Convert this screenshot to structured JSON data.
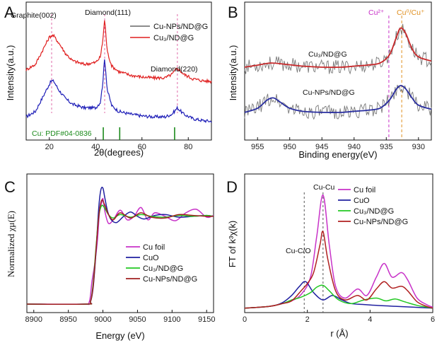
{
  "chart_data": [
    {
      "id": "A",
      "type": "line",
      "panel_label": "A",
      "title": "",
      "xlabel": "2θ(degrees)",
      "ylabel": "Intensity(a.u.)",
      "xlim": [
        10,
        90
      ],
      "xticks": [
        20,
        40,
        60,
        80
      ],
      "tick_labels": [
        "20",
        "40",
        "60",
        "80"
      ],
      "annotations": [
        "Graphite(002)",
        "Diamond(111)",
        "Diamond(220)"
      ],
      "reference_label": "Cu: PDF#04-0836",
      "reference_lines": [
        43.3,
        50.4,
        74.1
      ],
      "dashed_lines": [
        21.0,
        43.9,
        75.3
      ],
      "series": [
        {
          "name": "Cu-NPs/ND@G",
          "color": "#1f1fb8",
          "x": [
            10,
            14,
            18,
            20,
            21,
            22,
            24,
            27,
            30,
            35,
            40,
            42,
            43,
            43.9,
            45,
            47,
            50,
            55,
            60,
            65,
            70,
            73,
            75.3,
            78,
            82,
            86,
            90
          ],
          "y": [
            0.1,
            0.16,
            0.36,
            0.46,
            0.5,
            0.49,
            0.4,
            0.3,
            0.24,
            0.2,
            0.2,
            0.26,
            0.45,
            0.75,
            0.4,
            0.22,
            0.16,
            0.13,
            0.11,
            0.1,
            0.1,
            0.13,
            0.2,
            0.13,
            0.08,
            0.06,
            0.05
          ]
        },
        {
          "name": "Cu₃/ND@G",
          "color": "#e01f1f",
          "x": [
            10,
            14,
            18,
            20,
            21,
            22,
            24,
            27,
            30,
            35,
            40,
            42,
            43,
            43.9,
            45,
            47,
            50,
            55,
            60,
            65,
            70,
            73,
            75.3,
            78,
            82,
            86,
            90
          ],
          "y": [
            0.62,
            0.68,
            0.88,
            0.98,
            1.0,
            0.99,
            0.92,
            0.8,
            0.72,
            0.68,
            0.7,
            0.76,
            0.92,
            1.18,
            0.82,
            0.66,
            0.6,
            0.56,
            0.54,
            0.53,
            0.53,
            0.57,
            0.64,
            0.57,
            0.52,
            0.5,
            0.49
          ]
        }
      ]
    },
    {
      "id": "B",
      "type": "line",
      "panel_label": "B",
      "title": "",
      "xlabel": "Binding energy(eV)",
      "ylabel": "Intensity(a.u.)",
      "xlim": [
        957,
        928
      ],
      "xticks": [
        955,
        950,
        945,
        940,
        935,
        930
      ],
      "tick_labels": [
        "955",
        "950",
        "945",
        "940",
        "935",
        "930"
      ],
      "annotations": [
        "Cu²⁺",
        "Cu⁰/Cu⁺"
      ],
      "dashed_lines": [
        934.6,
        932.6
      ],
      "series": [
        {
          "name": "Cu₃/ND@G",
          "label": "Cu₃/ND@G",
          "color": "#c8282a",
          "raw_color": "#7a7a7a",
          "x": [
            957,
            955,
            953,
            951,
            948,
            945,
            942,
            940,
            938,
            936,
            934.5,
            933.5,
            932.8,
            932,
            931,
            930,
            928
          ],
          "y": [
            0.62,
            0.64,
            0.66,
            0.65,
            0.63,
            0.62,
            0.62,
            0.63,
            0.64,
            0.66,
            0.74,
            0.9,
            1.0,
            0.95,
            0.8,
            0.72,
            0.68
          ]
        },
        {
          "name": "Cu-NPs/ND@G",
          "label": "Cu-NPs/ND@G",
          "color": "#2a2fa0",
          "raw_color": "#7a7a7a",
          "x": [
            957,
            955,
            953.5,
            952.5,
            951.5,
            950,
            948,
            945,
            942,
            940,
            938,
            936,
            934.5,
            933.5,
            932.8,
            932,
            931,
            930,
            928
          ],
          "y": [
            0.18,
            0.22,
            0.3,
            0.32,
            0.28,
            0.22,
            0.19,
            0.18,
            0.18,
            0.19,
            0.2,
            0.22,
            0.3,
            0.4,
            0.44,
            0.41,
            0.32,
            0.25,
            0.21
          ]
        }
      ]
    },
    {
      "id": "C",
      "type": "line",
      "panel_label": "C",
      "title": "",
      "xlabel": "Energy (eV)",
      "ylabel": "Normalized χμ(E)",
      "xlim": [
        8890,
        9160
      ],
      "xticks": [
        8900,
        8950,
        9000,
        9050,
        9100,
        9150
      ],
      "tick_labels": [
        "8900",
        "8950",
        "9000",
        "9050",
        "9100",
        "9150"
      ],
      "series": [
        {
          "name": "Cu foil",
          "color": "#c832c8",
          "x": [
            8890,
            8970,
            8980,
            8984,
            8988,
            8992,
            8995,
            8998,
            9000,
            9003,
            9008,
            9015,
            9025,
            9035,
            9045,
            9055,
            9065,
            9075,
            9090,
            9105,
            9120,
            9135,
            9150,
            9160
          ],
          "y": [
            0.0,
            0.0,
            0.02,
            0.25,
            0.45,
            0.72,
            1.05,
            1.15,
            1.2,
            1.05,
            0.92,
            0.96,
            1.07,
            0.96,
            1.0,
            1.1,
            0.96,
            1.04,
            1.0,
            0.95,
            1.04,
            1.08,
            0.99,
            1.01
          ]
        },
        {
          "name": "CuO",
          "color": "#2020a0",
          "x": [
            8890,
            8975,
            8982,
            8986,
            8990,
            8994,
            8997,
            9000,
            9003,
            9007,
            9012,
            9020,
            9030,
            9040,
            9050,
            9060,
            9075,
            9090,
            9110,
            9130,
            9150,
            9160
          ],
          "y": [
            0.0,
            0.0,
            0.03,
            0.2,
            0.6,
            1.1,
            1.3,
            1.32,
            1.2,
            1.05,
            0.96,
            0.93,
            1.0,
            1.05,
            1.0,
            0.97,
            1.01,
            1.02,
            0.99,
            1.0,
            1.01,
            1.0
          ]
        },
        {
          "name": "Cu₃/ND@G",
          "color": "#22c822",
          "x": [
            8890,
            8975,
            8982,
            8986,
            8990,
            8994,
            8998,
            9002,
            9008,
            9015,
            9025,
            9040,
            9055,
            9070,
            9090,
            9110,
            9130,
            9150,
            9160
          ],
          "y": [
            0.0,
            0.0,
            0.03,
            0.25,
            0.65,
            1.0,
            1.12,
            1.1,
            1.02,
            0.98,
            1.02,
            0.99,
            1.02,
            1.0,
            0.99,
            1.01,
            1.0,
            1.01,
            1.0
          ]
        },
        {
          "name": "Cu-NPs/ND@G",
          "color": "#a02020",
          "x": [
            8890,
            8975,
            8982,
            8986,
            8990,
            8994,
            8998,
            9002,
            9008,
            9015,
            9025,
            9040,
            9055,
            9070,
            9090,
            9110,
            9130,
            9150,
            9160
          ],
          "y": [
            0.0,
            0.0,
            0.03,
            0.22,
            0.62,
            1.0,
            1.18,
            1.14,
            1.02,
            0.96,
            1.04,
            0.98,
            1.04,
            0.99,
            0.98,
            1.02,
            1.01,
            1.0,
            1.0
          ]
        }
      ]
    },
    {
      "id": "D",
      "type": "line",
      "panel_label": "D",
      "title": "",
      "xlabel": "r (Å)",
      "ylabel": "FT of k³χ(k)",
      "xlim": [
        0,
        6
      ],
      "xticks": [
        0,
        2,
        4,
        6
      ],
      "tick_labels": [
        "0",
        "2",
        "4",
        "6"
      ],
      "annotations": [
        "Cu-Cu",
        "Cu-C/O"
      ],
      "dashed_lines": [
        1.9,
        2.5
      ],
      "series": [
        {
          "name": "Cu foil",
          "color": "#c832c8",
          "x": [
            0,
            0.8,
            1.2,
            1.5,
            1.8,
            2.1,
            2.3,
            2.5,
            2.7,
            2.9,
            3.2,
            3.6,
            3.9,
            4.2,
            4.45,
            4.7,
            5.0,
            5.2,
            5.5,
            5.8,
            6.0
          ],
          "y": [
            0.01,
            0.03,
            0.06,
            0.09,
            0.16,
            0.35,
            0.8,
            1.25,
            0.7,
            0.25,
            0.12,
            0.22,
            0.15,
            0.35,
            0.5,
            0.35,
            0.4,
            0.32,
            0.12,
            0.05,
            0.02
          ]
        },
        {
          "name": "CuO",
          "color": "#2020a0",
          "x": [
            0,
            0.8,
            1.2,
            1.5,
            1.75,
            1.95,
            2.2,
            2.5,
            2.8,
            3.1,
            3.4,
            3.8,
            4.2,
            4.8,
            5.4,
            6.0
          ],
          "y": [
            0.01,
            0.03,
            0.07,
            0.15,
            0.25,
            0.3,
            0.18,
            0.1,
            0.15,
            0.1,
            0.06,
            0.05,
            0.04,
            0.03,
            0.02,
            0.01
          ]
        },
        {
          "name": "Cu₃/ND@G",
          "color": "#22c822",
          "x": [
            0,
            0.8,
            1.2,
            1.5,
            1.8,
            2.1,
            2.3,
            2.5,
            2.7,
            3.0,
            3.4,
            3.8,
            4.2,
            4.5,
            4.8,
            5.1,
            5.5,
            6.0
          ],
          "y": [
            0.01,
            0.03,
            0.06,
            0.1,
            0.13,
            0.18,
            0.24,
            0.26,
            0.2,
            0.1,
            0.06,
            0.1,
            0.12,
            0.09,
            0.11,
            0.08,
            0.04,
            0.01
          ]
        },
        {
          "name": "Cu-NPs/ND@G",
          "color": "#b02020",
          "x": [
            0,
            0.8,
            1.2,
            1.5,
            1.8,
            2.0,
            2.2,
            2.4,
            2.5,
            2.65,
            2.9,
            3.2,
            3.6,
            3.9,
            4.2,
            4.45,
            4.7,
            5.0,
            5.2,
            5.5,
            5.8,
            6.0
          ],
          "y": [
            0.01,
            0.03,
            0.06,
            0.09,
            0.2,
            0.28,
            0.4,
            0.7,
            0.85,
            0.55,
            0.2,
            0.1,
            0.15,
            0.1,
            0.22,
            0.3,
            0.23,
            0.25,
            0.2,
            0.08,
            0.03,
            0.01
          ]
        }
      ]
    }
  ]
}
